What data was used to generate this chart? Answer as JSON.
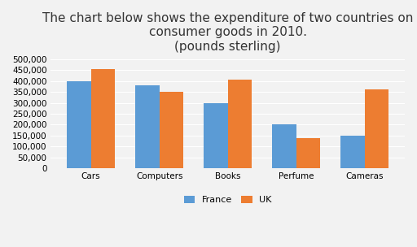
{
  "title_line1": "The chart below shows the expenditure of two countries on",
  "title_line2": "consumer goods in 2010.",
  "title_line3": "(pounds sterling)",
  "categories": [
    "Cars",
    "Computers",
    "Books",
    "Perfume",
    "Cameras"
  ],
  "france_values": [
    400000,
    380000,
    300000,
    200000,
    150000
  ],
  "uk_values": [
    455000,
    350000,
    408000,
    140000,
    360000
  ],
  "france_color": "#5B9BD5",
  "uk_color": "#ED7D31",
  "ylim": [
    0,
    500000
  ],
  "yticks": [
    0,
    50000,
    100000,
    150000,
    200000,
    250000,
    300000,
    350000,
    400000,
    450000,
    500000
  ],
  "legend_labels": [
    "France",
    "UK"
  ],
  "background_color": "#F2F2F2",
  "bar_width": 0.35,
  "title_fontsize": 11,
  "subtitle_fontsize": 9,
  "tick_fontsize": 7.5,
  "legend_fontsize": 8
}
